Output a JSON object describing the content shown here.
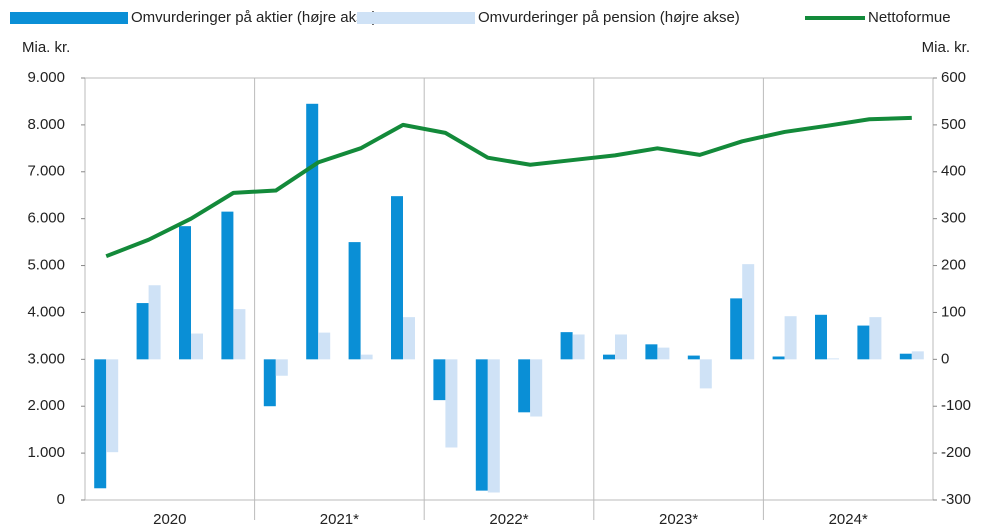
{
  "chart_data": {
    "type": "bar",
    "categories": [
      null,
      null,
      null,
      null,
      null,
      null,
      null,
      null,
      null,
      null,
      null,
      null,
      null,
      null,
      null,
      null,
      null,
      null,
      null,
      null
    ],
    "group_labels": [
      "2020",
      "2021*",
      "2022*",
      "2023*",
      "2024*"
    ],
    "ylabel": "Mia. kr.",
    "y2label": "Mia. kr.",
    "ylim": [
      0,
      9000
    ],
    "yticks": [
      0,
      {
        "value": 1000,
        "label": "1.000"
      },
      {
        "value": 2000,
        "label": "2.000"
      },
      {
        "value": 3000,
        "label": "3.000"
      },
      {
        "value": 4000,
        "label": "4.000"
      },
      {
        "value": 5000,
        "label": "5.000"
      },
      {
        "value": 6000,
        "label": "6.000"
      },
      {
        "value": 7000,
        "label": "7.000"
      },
      {
        "value": 8000,
        "label": "8.000"
      },
      {
        "value": 9000,
        "label": "9.000"
      }
    ],
    "y2lim": [
      -300,
      600
    ],
    "y2ticks": [
      -300,
      -200,
      -100,
      0,
      100,
      200,
      300,
      400,
      500,
      600
    ],
    "series": [
      {
        "name": "Omvurderinger på aktier (højre akse)",
        "type": "bar",
        "axis": "y2",
        "color": "#0a8fd6",
        "values": [
          -275,
          120,
          284,
          315,
          -100,
          545,
          250,
          348,
          -87,
          -280,
          -113,
          58,
          10,
          32,
          8,
          130,
          6,
          95,
          72,
          12
        ]
      },
      {
        "name": "Omvurderinger på pension (højre akse)",
        "type": "bar",
        "axis": "y2",
        "color": "#cfe2f6",
        "values": [
          -198,
          158,
          55,
          107,
          -35,
          57,
          10,
          90,
          -188,
          -284,
          -122,
          53,
          53,
          25,
          -62,
          203,
          92,
          2,
          90,
          17
        ]
      },
      {
        "name": "Nettoformue",
        "type": "line",
        "color": "#138a3a",
        "values": [
          5200,
          5550,
          6000,
          6550,
          6600,
          7200,
          7500,
          8000,
          7830,
          7300,
          7150,
          7250,
          7350,
          7500,
          7360,
          7650,
          7850,
          7980,
          8120,
          8150
        ]
      }
    ]
  }
}
